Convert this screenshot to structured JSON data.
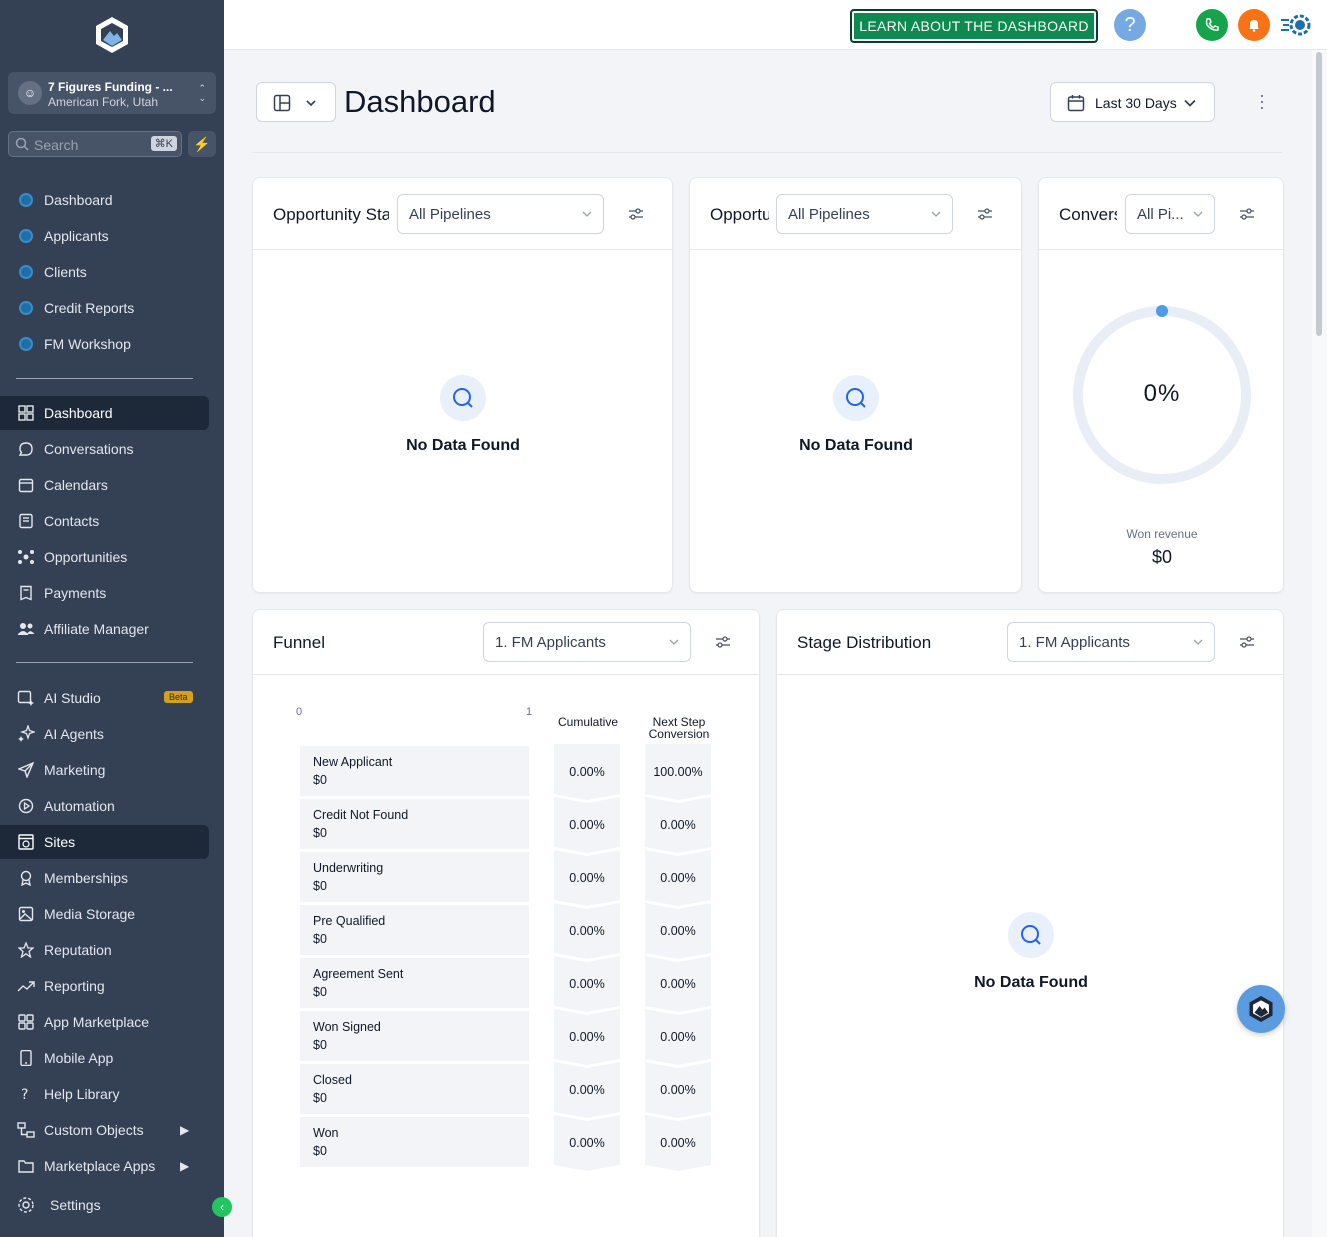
{
  "sidebar": {
    "account": {
      "avatar": "☺",
      "name": "7 Figures Funding - ...",
      "location": "American Fork, Utah"
    },
    "search": {
      "placeholder": "Search",
      "shortcut": "⌘K"
    },
    "top_items": [
      {
        "label": "Dashboard",
        "icon": "custom-menu-dot-icon"
      },
      {
        "label": "Applicants",
        "icon": "custom-menu-dot-icon"
      },
      {
        "label": "Clients",
        "icon": "custom-menu-dot-icon"
      },
      {
        "label": "Credit Reports",
        "icon": "custom-menu-dot-icon"
      },
      {
        "label": "FM Workshop",
        "icon": "custom-menu-dot-icon"
      }
    ],
    "main_items": [
      {
        "label": "Dashboard",
        "icon": "grid-icon",
        "active": true
      },
      {
        "label": "Conversations",
        "icon": "chat-bubble-icon"
      },
      {
        "label": "Calendars",
        "icon": "calendar-icon"
      },
      {
        "label": "Contacts",
        "icon": "contact-book-icon"
      },
      {
        "label": "Opportunities",
        "icon": "pipeline-icon"
      },
      {
        "label": "Payments",
        "icon": "receipt-icon"
      },
      {
        "label": "Affiliate Manager",
        "icon": "users-icon"
      }
    ],
    "tool_items": [
      {
        "label": "AI Studio",
        "icon": "ai-studio-icon",
        "badge": "Beta"
      },
      {
        "label": "AI Agents",
        "icon": "sparkle-icon"
      },
      {
        "label": "Marketing",
        "icon": "send-icon"
      },
      {
        "label": "Automation",
        "icon": "automation-icon"
      },
      {
        "label": "Sites",
        "icon": "globe-window-icon",
        "active": true
      },
      {
        "label": "Memberships",
        "icon": "award-icon"
      },
      {
        "label": "Media Storage",
        "icon": "image-icon"
      },
      {
        "label": "Reputation",
        "icon": "star-icon"
      },
      {
        "label": "Reporting",
        "icon": "trend-icon"
      },
      {
        "label": "App Marketplace",
        "icon": "apps-grid-icon"
      },
      {
        "label": "Mobile App",
        "icon": "mobile-icon"
      },
      {
        "label": "Help Library",
        "icon": "question-icon"
      },
      {
        "label": "Custom Objects",
        "icon": "objects-icon",
        "arrow": true
      },
      {
        "label": "Marketplace Apps",
        "icon": "folder-icon",
        "arrow": true
      }
    ],
    "settings_label": "Settings",
    "collapse_icon": "‹"
  },
  "topbar": {
    "learn_label": "LEARN ABOUT THE DASHBOARD",
    "help_label": "?",
    "colors": {
      "learn": "#0d8a4f",
      "help": "#74a9e3",
      "phone": "#16a34a",
      "bell": "#f97316"
    }
  },
  "header": {
    "title": "Dashboard",
    "date_range": "Last 30 Days"
  },
  "cards": {
    "opp_status": {
      "title": "Opportunity Status",
      "select": "All Pipelines",
      "empty": "No Data Found"
    },
    "opp_value": {
      "title": "Opportunity Value",
      "select": "All Pipelines",
      "empty": "No Data Found"
    },
    "conversion": {
      "title": "Conversion Rate",
      "select": "All Pi...",
      "rate": "0%",
      "rate_value": 0,
      "revenue_label": "Won revenue",
      "revenue": "$0"
    },
    "funnel": {
      "title": "Funnel",
      "select": "1. FM Applicants",
      "axis_min": "0",
      "axis_max": "1",
      "col_cumulative": "Cumulative",
      "col_next_1": "Next Step",
      "col_next_2": "Conversion",
      "rows": [
        {
          "name": "New Applicant",
          "value": "$0",
          "cumulative": "0.00%",
          "next": "100.00%"
        },
        {
          "name": "Credit Not Found",
          "value": "$0",
          "cumulative": "0.00%",
          "next": "0.00%"
        },
        {
          "name": "Underwriting",
          "value": "$0",
          "cumulative": "0.00%",
          "next": "0.00%"
        },
        {
          "name": "Pre Qualified",
          "value": "$0",
          "cumulative": "0.00%",
          "next": "0.00%"
        },
        {
          "name": "Agreement Sent",
          "value": "$0",
          "cumulative": "0.00%",
          "next": "0.00%"
        },
        {
          "name": "Won   Signed",
          "value": "$0",
          "cumulative": "0.00%",
          "next": "0.00%"
        },
        {
          "name": "Closed",
          "value": "$0",
          "cumulative": "0.00%",
          "next": "0.00%"
        },
        {
          "name": "Won",
          "value": "$0",
          "cumulative": "0.00%",
          "next": "0.00%"
        }
      ]
    },
    "stage": {
      "title": "Stage Distribution",
      "select": "1. FM Applicants",
      "empty": "No Data Found"
    }
  }
}
